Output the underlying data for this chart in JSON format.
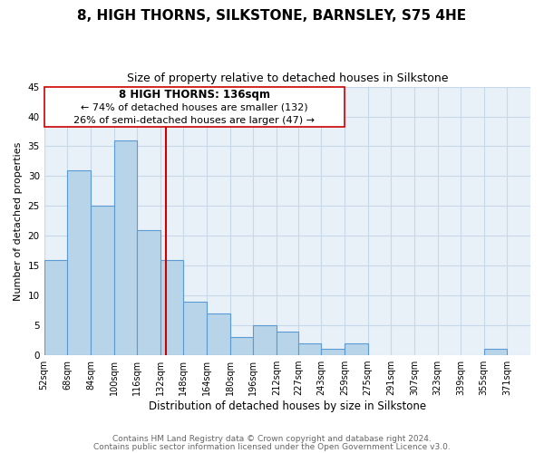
{
  "title": "8, HIGH THORNS, SILKSTONE, BARNSLEY, S75 4HE",
  "subtitle": "Size of property relative to detached houses in Silkstone",
  "xlabel": "Distribution of detached houses by size in Silkstone",
  "ylabel": "Number of detached properties",
  "bin_edges": [
    52,
    68,
    84,
    100,
    116,
    132,
    148,
    164,
    180,
    196,
    212,
    227,
    243,
    259,
    275,
    291,
    307,
    323,
    339,
    355,
    371,
    387
  ],
  "bar_heights": [
    16,
    31,
    25,
    36,
    21,
    16,
    9,
    7,
    3,
    5,
    4,
    2,
    1,
    2,
    0,
    0,
    0,
    0,
    0,
    1,
    0
  ],
  "bin_labels": [
    "52sqm",
    "68sqm",
    "84sqm",
    "100sqm",
    "116sqm",
    "132sqm",
    "148sqm",
    "164sqm",
    "180sqm",
    "196sqm",
    "212sqm",
    "227sqm",
    "243sqm",
    "259sqm",
    "275sqm",
    "291sqm",
    "307sqm",
    "323sqm",
    "339sqm",
    "355sqm",
    "371sqm"
  ],
  "bar_color": "#b8d4e8",
  "bar_edge_color": "#5b9bd5",
  "red_line_x": 136,
  "annotation_title": "8 HIGH THORNS: 136sqm",
  "annotation_line1": "← 74% of detached houses are smaller (132)",
  "annotation_line2": "26% of semi-detached houses are larger (47) →",
  "ylim": [
    0,
    45
  ],
  "yticks": [
    0,
    5,
    10,
    15,
    20,
    25,
    30,
    35,
    40,
    45
  ],
  "footer1": "Contains HM Land Registry data © Crown copyright and database right 2024.",
  "footer2": "Contains public sector information licensed under the Open Government Licence v3.0.",
  "background_color": "#ffffff",
  "plot_bg_color": "#e8f0f8",
  "grid_color": "#c8d8e8",
  "ann_box_color": "#cc0000",
  "footer_color": "#666666"
}
